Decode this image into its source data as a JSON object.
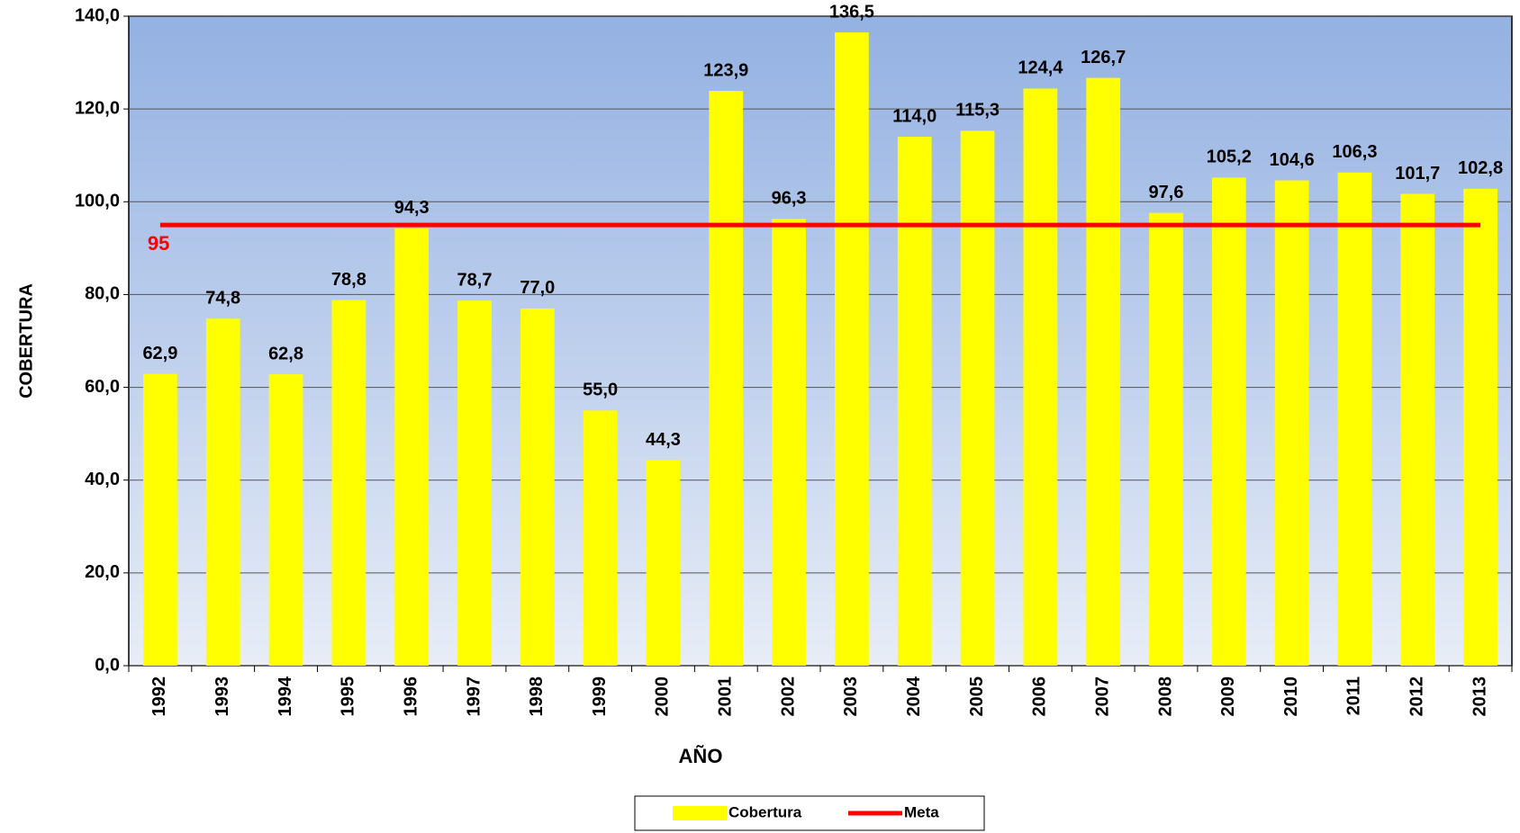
{
  "chart_data": {
    "type": "bar",
    "x_label": "AÑO",
    "y_label": "COBERTURA",
    "categories": [
      "1992",
      "1993",
      "1994",
      "1995",
      "1996",
      "1997",
      "1998",
      "1999",
      "2000",
      "2001",
      "2002",
      "2003",
      "2004",
      "2005",
      "2006",
      "2007",
      "2008",
      "2009",
      "2010",
      "2011",
      "2012",
      "2013"
    ],
    "series": [
      {
        "name": "Cobertura",
        "color": "#ffff00",
        "values": [
          62.9,
          74.8,
          62.8,
          78.8,
          94.3,
          78.7,
          77.0,
          55.0,
          44.3,
          123.9,
          96.3,
          136.5,
          114.0,
          115.3,
          124.4,
          126.7,
          97.6,
          105.2,
          104.6,
          106.3,
          101.7,
          102.8
        ],
        "value_labels": [
          "62,9",
          "74,8",
          "62,8",
          "78,8",
          "94,3",
          "78,7",
          "77,0",
          "55,0",
          "44,3",
          "123,9",
          "96,3",
          "136,5",
          "114,0",
          "115,3",
          "124,4",
          "126,7",
          "97,6",
          "105,2",
          "104,6",
          "106,3",
          "101,7",
          "102,8"
        ]
      },
      {
        "name": "Meta",
        "color": "#ff0000",
        "kind": "line",
        "values": [
          95,
          95,
          95,
          95,
          95,
          95,
          95,
          95,
          95,
          95,
          95,
          95,
          95,
          95,
          95,
          95,
          95,
          95,
          95,
          95,
          95,
          95
        ]
      }
    ],
    "annotations": [
      {
        "text": "95",
        "value": 95
      }
    ],
    "ylim": [
      0,
      140
    ],
    "yticks": [
      {
        "value": 0,
        "label": "0,0"
      },
      {
        "value": 20,
        "label": "20,0"
      },
      {
        "value": 40,
        "label": "40,0"
      },
      {
        "value": 60,
        "label": "60,0"
      },
      {
        "value": 80,
        "label": "80,0"
      },
      {
        "value": 100,
        "label": "100,0"
      },
      {
        "value": 120,
        "label": "120,0"
      },
      {
        "value": 140,
        "label": "140,0"
      }
    ],
    "grid": true,
    "legend": "bottom"
  }
}
